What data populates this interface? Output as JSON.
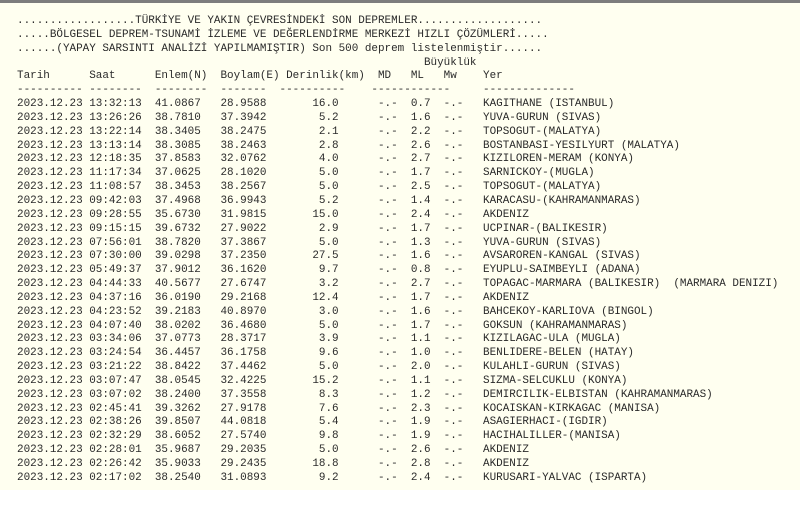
{
  "header": {
    "title1": "..................TÜRKİYE VE YAKIN ÇEVRESİNDEKİ SON DEPREMLER...................",
    "title2": ".....BÖLGESEL DEPREM-TSUNAMİ İZLEME VE DEĞERLENDİRME MERKEZİ HIZLI ÇÖZÜMLERİ.....",
    "title3": "......(YAPAY SARSINTI ANALİZİ YAPILMAMIŞTIR) Son 500 deprem listelenmiştir......",
    "magnitude_group": "Büyüklük"
  },
  "columns": {
    "date": "Tarih",
    "time": "Saat",
    "lat": "Enlem(N)",
    "lon": "Boylam(E)",
    "depth": "Derinlik(km)",
    "md": "MD",
    "ml": "ML",
    "mw": "Mw",
    "place": "Yer"
  },
  "separators": {
    "date": "----------",
    "time": "--------",
    "lat": "--------",
    "lon": "-------",
    "depth": "----------",
    "mag": "------------",
    "place": "--------------"
  },
  "rows": [
    {
      "date": "2023.12.23",
      "time": "13:32:13",
      "lat": "41.0867",
      "lon": "28.9588",
      "depth": "16.0",
      "md": "-.-",
      "ml": "0.7",
      "mw": "-.-",
      "place": "KAGITHANE (ISTANBUL)"
    },
    {
      "date": "2023.12.23",
      "time": "13:26:26",
      "lat": "38.7810",
      "lon": "37.3942",
      "depth": "5.2",
      "md": "-.-",
      "ml": "1.6",
      "mw": "-.-",
      "place": "YUVA-GURUN (SIVAS)"
    },
    {
      "date": "2023.12.23",
      "time": "13:22:14",
      "lat": "38.3405",
      "lon": "38.2475",
      "depth": "2.1",
      "md": "-.-",
      "ml": "2.2",
      "mw": "-.-",
      "place": "TOPSOGUT-(MALATYA)"
    },
    {
      "date": "2023.12.23",
      "time": "13:13:14",
      "lat": "38.3085",
      "lon": "38.2463",
      "depth": "2.8",
      "md": "-.-",
      "ml": "2.6",
      "mw": "-.-",
      "place": "BOSTANBASI-YESILYURT (MALATYA)"
    },
    {
      "date": "2023.12.23",
      "time": "12:18:35",
      "lat": "37.8583",
      "lon": "32.0762",
      "depth": "4.0",
      "md": "-.-",
      "ml": "2.7",
      "mw": "-.-",
      "place": "KIZILOREN-MERAM (KONYA)"
    },
    {
      "date": "2023.12.23",
      "time": "11:17:34",
      "lat": "37.0625",
      "lon": "28.1020",
      "depth": "5.0",
      "md": "-.-",
      "ml": "1.7",
      "mw": "-.-",
      "place": "SARNICKOY-(MUGLA)"
    },
    {
      "date": "2023.12.23",
      "time": "11:08:57",
      "lat": "38.3453",
      "lon": "38.2567",
      "depth": "5.0",
      "md": "-.-",
      "ml": "2.5",
      "mw": "-.-",
      "place": "TOPSOGUT-(MALATYA)"
    },
    {
      "date": "2023.12.23",
      "time": "09:42:03",
      "lat": "37.4968",
      "lon": "36.9943",
      "depth": "5.2",
      "md": "-.-",
      "ml": "1.4",
      "mw": "-.-",
      "place": "KARACASU-(KAHRAMANMARAS)"
    },
    {
      "date": "2023.12.23",
      "time": "09:28:55",
      "lat": "35.6730",
      "lon": "31.9815",
      "depth": "15.0",
      "md": "-.-",
      "ml": "2.4",
      "mw": "-.-",
      "place": "AKDENIZ"
    },
    {
      "date": "2023.12.23",
      "time": "09:15:15",
      "lat": "39.6732",
      "lon": "27.9022",
      "depth": "2.9",
      "md": "-.-",
      "ml": "1.7",
      "mw": "-.-",
      "place": "UCPINAR-(BALIKESIR)"
    },
    {
      "date": "2023.12.23",
      "time": "07:56:01",
      "lat": "38.7820",
      "lon": "37.3867",
      "depth": "5.0",
      "md": "-.-",
      "ml": "1.3",
      "mw": "-.-",
      "place": "YUVA-GURUN (SIVAS)"
    },
    {
      "date": "2023.12.23",
      "time": "07:30:00",
      "lat": "39.0298",
      "lon": "37.2350",
      "depth": "27.5",
      "md": "-.-",
      "ml": "1.6",
      "mw": "-.-",
      "place": "AVSAROREN-KANGAL (SIVAS)"
    },
    {
      "date": "2023.12.23",
      "time": "05:49:37",
      "lat": "37.9012",
      "lon": "36.1620",
      "depth": "9.7",
      "md": "-.-",
      "ml": "0.8",
      "mw": "-.-",
      "place": "EYUPLU-SAIMBEYLI (ADANA)"
    },
    {
      "date": "2023.12.23",
      "time": "04:44:33",
      "lat": "40.5677",
      "lon": "27.6747",
      "depth": "3.2",
      "md": "-.-",
      "ml": "2.7",
      "mw": "-.-",
      "place": "TOPAGAC-MARMARA (BALIKESIR)  (MARMARA DENIZI)"
    },
    {
      "date": "2023.12.23",
      "time": "04:37:16",
      "lat": "36.0190",
      "lon": "29.2168",
      "depth": "12.4",
      "md": "-.-",
      "ml": "1.7",
      "mw": "-.-",
      "place": "AKDENIZ"
    },
    {
      "date": "2023.12.23",
      "time": "04:23:52",
      "lat": "39.2183",
      "lon": "40.8970",
      "depth": "3.0",
      "md": "-.-",
      "ml": "1.6",
      "mw": "-.-",
      "place": "BAHCEKOY-KARLIOVA (BINGOL)"
    },
    {
      "date": "2023.12.23",
      "time": "04:07:40",
      "lat": "38.0202",
      "lon": "36.4680",
      "depth": "5.0",
      "md": "-.-",
      "ml": "1.7",
      "mw": "-.-",
      "place": "GOKSUN (KAHRAMANMARAS)"
    },
    {
      "date": "2023.12.23",
      "time": "03:34:06",
      "lat": "37.0773",
      "lon": "28.3717",
      "depth": "3.9",
      "md": "-.-",
      "ml": "1.1",
      "mw": "-.-",
      "place": "KIZILAGAC-ULA (MUGLA)"
    },
    {
      "date": "2023.12.23",
      "time": "03:24:54",
      "lat": "36.4457",
      "lon": "36.1758",
      "depth": "9.6",
      "md": "-.-",
      "ml": "1.0",
      "mw": "-.-",
      "place": "BENLIDERE-BELEN (HATAY)"
    },
    {
      "date": "2023.12.23",
      "time": "03:21:22",
      "lat": "38.8422",
      "lon": "37.4462",
      "depth": "5.0",
      "md": "-.-",
      "ml": "2.0",
      "mw": "-.-",
      "place": "KULAHLI-GURUN (SIVAS)"
    },
    {
      "date": "2023.12.23",
      "time": "03:07:47",
      "lat": "38.0545",
      "lon": "32.4225",
      "depth": "15.2",
      "md": "-.-",
      "ml": "1.1",
      "mw": "-.-",
      "place": "SIZMA-SELCUKLU (KONYA)"
    },
    {
      "date": "2023.12.23",
      "time": "03:07:02",
      "lat": "38.2400",
      "lon": "37.3558",
      "depth": "8.3",
      "md": "-.-",
      "ml": "1.2",
      "mw": "-.-",
      "place": "DEMIRCILIK-ELBISTAN (KAHRAMANMARAS)"
    },
    {
      "date": "2023.12.23",
      "time": "02:45:41",
      "lat": "39.3262",
      "lon": "27.9178",
      "depth": "7.6",
      "md": "-.-",
      "ml": "2.3",
      "mw": "-.-",
      "place": "KOCAISKAN-KIRKAGAC (MANISA)"
    },
    {
      "date": "2023.12.23",
      "time": "02:38:26",
      "lat": "39.8507",
      "lon": "44.0818",
      "depth": "5.4",
      "md": "-.-",
      "ml": "1.9",
      "mw": "-.-",
      "place": "ASAGIERHACI-(IGDIR)"
    },
    {
      "date": "2023.12.23",
      "time": "02:32:29",
      "lat": "38.6052",
      "lon": "27.5740",
      "depth": "9.8",
      "md": "-.-",
      "ml": "1.9",
      "mw": "-.-",
      "place": "HACIHALILLER-(MANISA)"
    },
    {
      "date": "2023.12.23",
      "time": "02:28:01",
      "lat": "35.9687",
      "lon": "29.2035",
      "depth": "5.0",
      "md": "-.-",
      "ml": "2.6",
      "mw": "-.-",
      "place": "AKDENIZ"
    },
    {
      "date": "2023.12.23",
      "time": "02:26:42",
      "lat": "35.9033",
      "lon": "29.2435",
      "depth": "18.8",
      "md": "-.-",
      "ml": "2.8",
      "mw": "-.-",
      "place": "AKDENIZ"
    },
    {
      "date": "2023.12.23",
      "time": "02:17:02",
      "lat": "38.2540",
      "lon": "31.0893",
      "depth": "9.2",
      "md": "-.-",
      "ml": "2.4",
      "mw": "-.-",
      "place": "KURUSARI-YALVAC (ISPARTA)"
    }
  ]
}
